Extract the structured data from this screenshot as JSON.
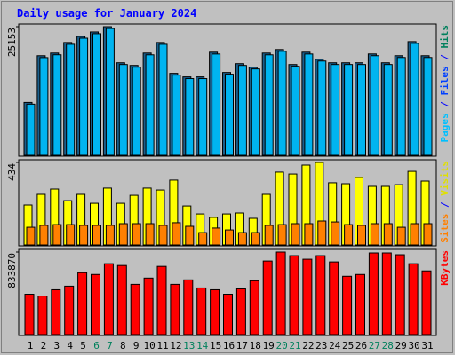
{
  "chart_data": [
    {
      "type": "bar",
      "title": "Daily usage for January 2024",
      "categories": [
        "1",
        "2",
        "3",
        "4",
        "5",
        "6",
        "7",
        "8",
        "9",
        "10",
        "11",
        "12",
        "13",
        "14",
        "15",
        "16",
        "17",
        "18",
        "19",
        "20",
        "21",
        "22",
        "23",
        "24",
        "25",
        "26",
        "27",
        "28",
        "29",
        "30",
        "31"
      ],
      "highlight_categories": [
        "6",
        "7",
        "13",
        "14",
        "20",
        "21",
        "27",
        "28"
      ],
      "highlight_color": "#00805c",
      "ylim": [
        0,
        25153
      ],
      "yticks": [
        25153
      ],
      "side_label": [
        {
          "text": "Pages",
          "color": "#00c0ff"
        },
        {
          "text": " / ",
          "color": "#0000ff"
        },
        {
          "text": "Files",
          "color": "#0040ff"
        },
        {
          "text": " / ",
          "color": "#0000ff"
        },
        {
          "text": "Hits",
          "color": "#00805c"
        }
      ],
      "series": [
        {
          "name": "Hits",
          "color": "#1a5f8c",
          "values": [
            10337,
            19468,
            19985,
            22052,
            23258,
            24119,
            25153,
            18090,
            17573,
            19985,
            22052,
            16022,
            15333,
            15333,
            20157,
            16194,
            17917,
            17228,
            19985,
            20674,
            17745,
            20157,
            18779,
            18090,
            18090,
            18090,
            19812,
            18090,
            19468,
            22224,
            19468
          ]
        },
        {
          "name": "Files",
          "color": "#00b4f0",
          "values": [
            10000,
            19100,
            19650,
            21700,
            22900,
            23780,
            24800,
            17750,
            17230,
            19640,
            21700,
            15680,
            15000,
            15000,
            19800,
            15850,
            17570,
            16890,
            19640,
            20330,
            17400,
            19800,
            18430,
            17750,
            17750,
            17750,
            19470,
            17750,
            19120,
            21880,
            19120
          ]
        }
      ]
    },
    {
      "type": "bar",
      "ylim": [
        0,
        434
      ],
      "yticks": [
        434
      ],
      "side_label": [
        {
          "text": "Sites",
          "color": "#ff8000"
        },
        {
          "text": " / ",
          "color": "#0000ff"
        },
        {
          "text": "Visits",
          "color": "#e0e000"
        }
      ],
      "series": [
        {
          "name": "Visits",
          "color": "#ffff00",
          "values": [
            210,
            266,
            294,
            233,
            266,
            219,
            299,
            219,
            261,
            299,
            289,
            341,
            205,
            163,
            145,
            163,
            168,
            140,
            266,
            383,
            373,
            420,
            434,
            327,
            322,
            355,
            308,
            308,
            317,
            387,
            336
          ]
        },
        {
          "name": "Sites",
          "color": "#ff8000",
          "values": [
            93,
            103,
            107,
            107,
            103,
            103,
            103,
            112,
            112,
            112,
            103,
            117,
            98,
            65,
            89,
            79,
            65,
            65,
            103,
            107,
            112,
            112,
            126,
            121,
            107,
            103,
            112,
            112,
            93,
            112,
            112
          ]
        }
      ]
    },
    {
      "type": "bar",
      "ylim": [
        0,
        833870
      ],
      "yticks": [
        833870
      ],
      "side_label": [
        {
          "text": "KBytes",
          "color": "#ff0000"
        }
      ],
      "series": [
        {
          "name": "KBytes",
          "color": "#ff0000",
          "values": [
            407871,
            389743,
            453190,
            489445,
            625403,
            607275,
            716041,
            697913,
            507573,
            571020,
            688849,
            507573,
            552892,
            471318,
            453190,
            407871,
            462254,
            543828,
            743232,
            833870,
            797615,
            761359,
            797615,
            734168,
            589147,
            607275,
            824806,
            824806,
            806679,
            716041,
            643530
          ]
        }
      ]
    }
  ]
}
